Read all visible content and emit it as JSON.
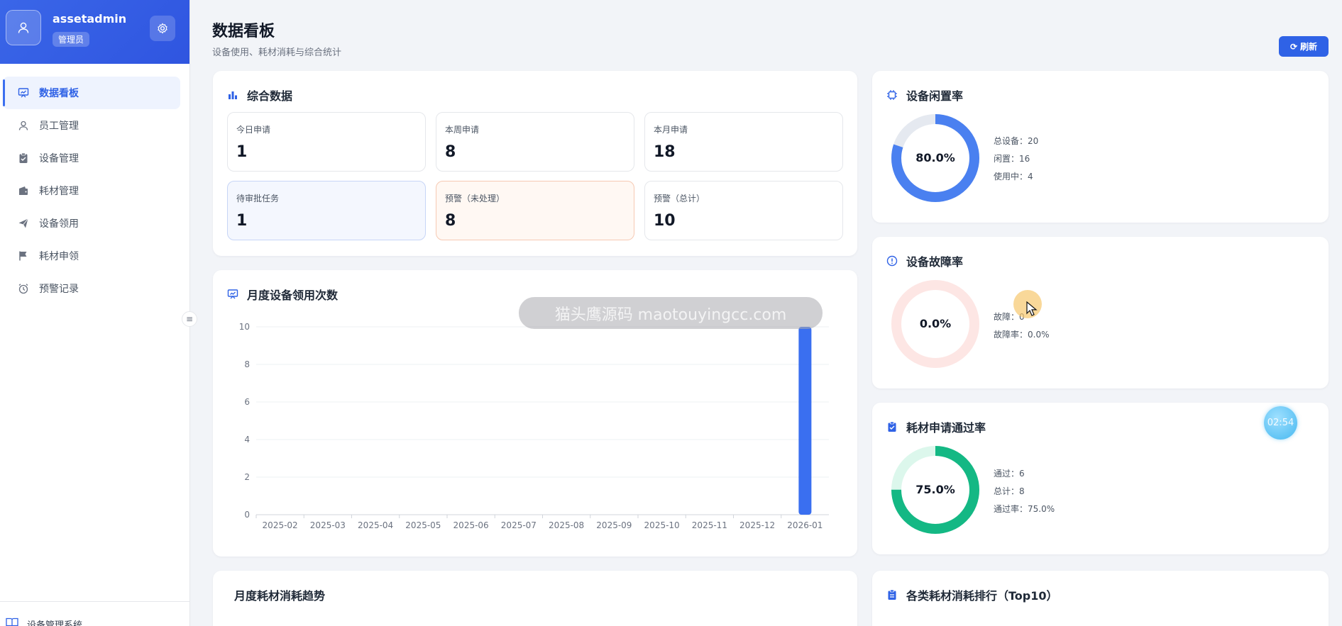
{
  "sidebar": {
    "username": "assetadmin",
    "role": "管理员",
    "items": [
      {
        "label": "数据看板",
        "icon": "dashboard-icon",
        "active": true
      },
      {
        "label": "员工管理",
        "icon": "user-icon"
      },
      {
        "label": "设备管理",
        "icon": "clipboard-check-icon"
      },
      {
        "label": "耗材管理",
        "icon": "wallet-icon"
      },
      {
        "label": "设备领用",
        "icon": "send-icon"
      },
      {
        "label": "耗材申领",
        "icon": "flag-icon"
      },
      {
        "label": "预警记录",
        "icon": "alarm-clock-icon"
      }
    ],
    "footer_label": "设备管理系统"
  },
  "header": {
    "title": "数据看板",
    "subtitle": "设备使用、耗材消耗与综合统计",
    "refresh_label": "刷新"
  },
  "summary": {
    "title": "综合数据",
    "stats": [
      {
        "label": "今日申请",
        "value": "1"
      },
      {
        "label": "本周申请",
        "value": "8"
      },
      {
        "label": "本月申请",
        "value": "18"
      },
      {
        "label": "待审批任务",
        "value": "1"
      },
      {
        "label": "预警（未处理）",
        "value": "8"
      },
      {
        "label": "预警（总计）",
        "value": "10"
      }
    ]
  },
  "idle_rate": {
    "title": "设备闲置率",
    "percent_label": "80.0%",
    "fraction": 0.8,
    "color": "#4a80f0",
    "track_color": "#e5e9f0",
    "lines": [
      "总设备：20",
      "闲置：16",
      "使用中：4"
    ]
  },
  "fault_rate": {
    "title": "设备故障率",
    "percent_label": "0.0%",
    "fraction": 0.0,
    "color": "#ef4444",
    "track_color": "#fde6e4",
    "lines": [
      "故障：0",
      "故障率：0.0%"
    ]
  },
  "pass_rate": {
    "title": "耗材申请通过率",
    "percent_label": "75.0%",
    "fraction": 0.75,
    "color": "#14b884",
    "track_color": "#dcf7ec",
    "lines": [
      "通过：6",
      "总计：8",
      "通过率：75.0%"
    ]
  },
  "chart_data": {
    "type": "bar",
    "title": "月度设备领用次数",
    "categories": [
      "2025-02",
      "2025-03",
      "2025-04",
      "2025-05",
      "2025-06",
      "2025-07",
      "2025-08",
      "2025-09",
      "2025-10",
      "2025-11",
      "2025-12",
      "2026-01"
    ],
    "values": [
      0,
      0,
      0,
      0,
      0,
      0,
      0,
      0,
      0,
      0,
      0,
      10
    ],
    "yticks": [
      "0",
      "2",
      "4",
      "6",
      "8",
      "10"
    ],
    "ylim": [
      0,
      10
    ],
    "grid": true,
    "bar_color": "#3a6ff0"
  },
  "consumption_trend": {
    "title": "月度耗材消耗趋势"
  },
  "consumption_rank": {
    "title": "各类耗材消耗排行（Top10）"
  },
  "overlays": {
    "watermark": "猫头鹰源码 maotouyingcc.com",
    "timer": "02:54"
  }
}
